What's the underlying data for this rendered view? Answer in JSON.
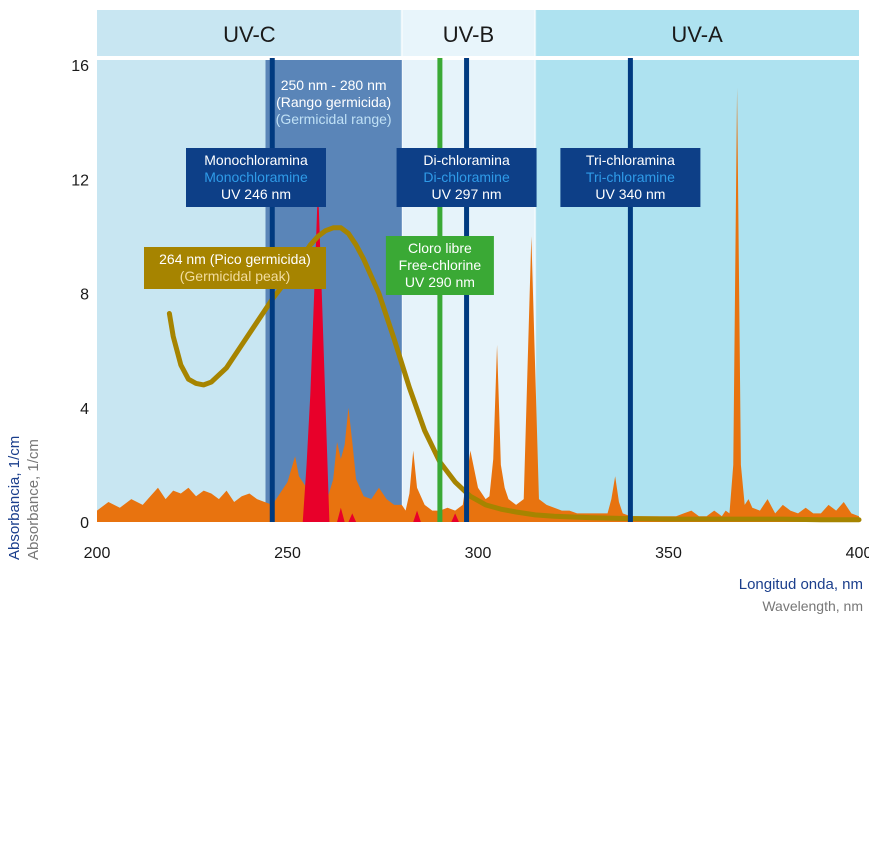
{
  "chart_data": {
    "type": "area",
    "xlabel_primary": "Longitud onda, nm",
    "xlabel_secondary": "Wavelength, nm",
    "ylabel_primary": "Absorbancia, 1/cm",
    "ylabel_secondary": "Absorbance, 1/cm",
    "xlim": [
      200,
      400
    ],
    "ylim": [
      0,
      16
    ],
    "x_ticks": [
      200,
      250,
      300,
      350,
      400
    ],
    "y_ticks": [
      0,
      4,
      8,
      12,
      16
    ],
    "bands": [
      {
        "label": "UV-C",
        "x_start": 200,
        "x_end": 280,
        "color": "#c8e6f2"
      },
      {
        "label": "UV-B",
        "x_start": 280,
        "x_end": 315,
        "color": "#e6f3fa"
      },
      {
        "label": "UV-A",
        "x_start": 315,
        "x_end": 400,
        "color": "#aee2f0"
      }
    ],
    "germicidal_range": {
      "x_start": 250,
      "x_end": 280,
      "color": "#5a85b8",
      "label_lines": [
        "250 nm - 280 nm",
        "(Rango germicida)",
        "(Germicidal range)"
      ]
    },
    "vertical_lines": [
      {
        "x": 246,
        "color": "#003a80",
        "label_lines": [
          "Monochloramina",
          "Monochloramine",
          "UV 246 nm"
        ]
      },
      {
        "x": 297,
        "color": "#003a80",
        "label_lines": [
          "Di-chloramina",
          "Di-chloramine",
          "UV 297 nm"
        ]
      },
      {
        "x": 340,
        "color": "#003a80",
        "label_lines": [
          "Tri-chloramina",
          "Tri-chloramine",
          "UV 340 nm"
        ]
      },
      {
        "x": 290,
        "color": "#3aa935",
        "label_lines": [
          "Cloro libre",
          "Free-chlorine",
          "UV 290 nm"
        ]
      }
    ],
    "peak_label": {
      "x": 264,
      "color": "#a68400",
      "label_lines": [
        "264 nm (Pico germicida)",
        "(Germicidal peak)"
      ]
    },
    "series": [
      {
        "name": "",
        "kind": "area",
        "color": "#e8730f",
        "x": [
          200,
          203,
          206,
          209,
          212,
          214,
          216,
          218,
          220,
          222,
          224,
          226,
          228,
          230,
          232,
          234,
          236,
          238,
          240,
          242,
          244,
          246,
          248,
          250,
          252,
          253,
          255,
          256,
          257,
          258,
          260,
          262,
          263,
          264,
          265,
          266,
          267,
          268,
          270,
          272,
          274,
          276,
          278,
          280,
          281,
          282,
          283,
          284,
          286,
          288,
          290,
          292,
          294,
          296,
          297,
          298,
          300,
          302,
          303,
          304,
          305,
          306,
          307,
          308,
          310,
          312,
          314,
          316,
          318,
          320,
          322,
          324,
          326,
          328,
          330,
          332,
          334,
          335,
          336,
          337,
          338,
          340,
          342,
          344,
          346,
          348,
          350,
          352,
          354,
          356,
          358,
          360,
          361,
          362,
          363,
          364,
          365,
          366,
          367,
          368,
          369,
          370,
          371,
          372,
          374,
          376,
          378,
          380,
          382,
          384,
          386,
          388,
          390,
          392,
          394,
          396,
          398,
          400
        ],
        "y": [
          0.4,
          0.7,
          0.5,
          0.8,
          0.6,
          0.9,
          1.2,
          0.8,
          1.1,
          1.0,
          1.2,
          0.9,
          1.1,
          1.0,
          0.8,
          1.1,
          0.7,
          0.9,
          1.0,
          0.8,
          0.7,
          0.6,
          1.0,
          1.4,
          2.3,
          1.6,
          1.2,
          1.0,
          3.0,
          2.0,
          0.6,
          1.5,
          2.8,
          2.2,
          2.7,
          4.0,
          2.8,
          1.5,
          0.9,
          0.8,
          1.2,
          0.8,
          0.6,
          0.6,
          0.4,
          1.0,
          2.5,
          1.2,
          0.6,
          0.4,
          0.4,
          0.5,
          0.4,
          0.6,
          1.5,
          2.5,
          1.2,
          0.8,
          0.9,
          2.2,
          6.2,
          2.0,
          1.2,
          0.8,
          0.6,
          0.8,
          10.0,
          0.8,
          0.6,
          0.5,
          0.4,
          0.4,
          0.3,
          0.3,
          0.3,
          0.3,
          0.3,
          0.8,
          1.6,
          0.7,
          0.3,
          0.2,
          0.2,
          0.2,
          0.2,
          0.2,
          0.2,
          0.2,
          0.3,
          0.4,
          0.2,
          0.2,
          0.3,
          0.4,
          0.3,
          0.2,
          0.4,
          0.3,
          2.0,
          15.2,
          2.0,
          0.6,
          0.8,
          0.5,
          0.4,
          0.8,
          0.3,
          0.6,
          0.4,
          0.3,
          0.5,
          0.3,
          0.3,
          0.6,
          0.4,
          0.7,
          0.3,
          0.2
        ]
      },
      {
        "name": "",
        "kind": "area",
        "color": "#e8002a",
        "x": [
          254,
          255,
          256,
          257,
          258,
          259,
          260,
          261,
          263,
          264,
          265,
          266,
          267,
          268,
          283,
          284,
          285,
          293,
          294,
          295
        ],
        "y": [
          0,
          2.0,
          4.5,
          8.0,
          11.8,
          8.0,
          4.0,
          0,
          0,
          0.5,
          0,
          0,
          0.3,
          0,
          0,
          0.4,
          0,
          0,
          0.3,
          0
        ]
      },
      {
        "name": "",
        "kind": "line",
        "color": "#a68400",
        "x": [
          219,
          220,
          222,
          224,
          226,
          228,
          230,
          234,
          238,
          242,
          246,
          250,
          254,
          256,
          258,
          260,
          262,
          264,
          266,
          268,
          270,
          274,
          278,
          282,
          286,
          290,
          294,
          298,
          302,
          306,
          310,
          315,
          320,
          330,
          340,
          350,
          360,
          370,
          380,
          390,
          400
        ],
        "y": [
          7.3,
          6.5,
          5.5,
          5.0,
          4.85,
          4.8,
          4.9,
          5.4,
          6.2,
          7.0,
          7.8,
          8.5,
          9.3,
          9.7,
          10.0,
          10.2,
          10.3,
          10.3,
          10.1,
          9.7,
          9.2,
          8.0,
          6.4,
          4.7,
          3.2,
          2.1,
          1.4,
          0.9,
          0.6,
          0.45,
          0.35,
          0.25,
          0.2,
          0.15,
          0.12,
          0.1,
          0.1,
          0.1,
          0.1,
          0.08,
          0.08
        ]
      }
    ]
  }
}
